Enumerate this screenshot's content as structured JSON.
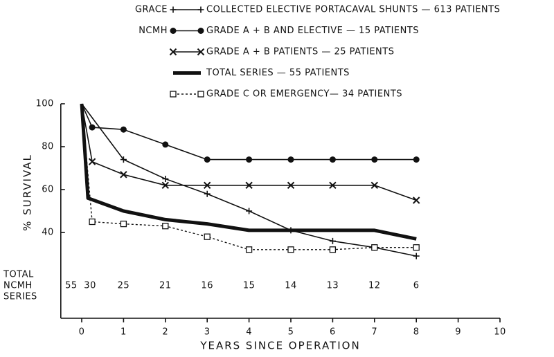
{
  "chart_data": {
    "type": "line",
    "xlabel": "YEARS SINCE OPERATION",
    "ylabel": "% SURVIVAL",
    "xlim": [
      -0.5,
      10
    ],
    "ylim": [
      0,
      100
    ],
    "xticks": [
      0,
      1,
      2,
      3,
      4,
      5,
      6,
      7,
      8,
      9,
      10
    ],
    "yticks": [
      40,
      60,
      80,
      100
    ],
    "series": [
      {
        "group": "GRACE",
        "name": "COLLECTED ELECTIVE PORTACAVAL SHUNTS — 613 PATIENTS",
        "color": "#111",
        "marker": "plus",
        "dash": false,
        "width": 1.6,
        "x": [
          0,
          1,
          2,
          3,
          4,
          5,
          6,
          7,
          8
        ],
        "values": [
          100,
          74,
          65,
          58,
          50,
          41,
          36,
          33,
          29
        ]
      },
      {
        "group": "NCMH",
        "name": "GRADE A + B AND ELECTIVE — 15 PATIENTS",
        "color": "#111",
        "marker": "dot",
        "dash": false,
        "width": 1.6,
        "x": [
          0,
          0.25,
          1,
          2,
          3,
          4,
          5,
          6,
          7,
          8
        ],
        "values": [
          100,
          89,
          88,
          81,
          74,
          74,
          74,
          74,
          74,
          74
        ]
      },
      {
        "name": "GRADE A + B PATIENTS — 25 PATIENTS",
        "color": "#111",
        "marker": "x",
        "dash": false,
        "width": 1.6,
        "x": [
          0,
          0.25,
          1,
          2,
          3,
          4,
          5,
          6,
          7,
          8
        ],
        "values": [
          100,
          73,
          67,
          62,
          62,
          62,
          62,
          62,
          62,
          55
        ]
      },
      {
        "name": "TOTAL SERIES — 55 PATIENTS",
        "color": "#111",
        "marker": "none",
        "dash": false,
        "width": 5,
        "x": [
          0,
          0.15,
          1,
          2,
          3,
          4,
          5,
          6,
          7,
          8
        ],
        "values": [
          100,
          56,
          50,
          46,
          44,
          41,
          41,
          41,
          41,
          37
        ]
      },
      {
        "name": "GRADE C OR EMERGENCY— 34 PATIENTS",
        "color": "#111",
        "marker": "square",
        "dash": true,
        "width": 1.4,
        "x": [
          0,
          0.25,
          1,
          2,
          3,
          4,
          5,
          6,
          7,
          8
        ],
        "values": [
          100,
          45,
          44,
          43,
          38,
          32,
          32,
          32,
          33,
          33
        ]
      }
    ],
    "counts": {
      "label_lines": [
        "TOTAL",
        "NCMH",
        "SERIES"
      ],
      "x": [
        -0.25,
        0.2,
        1,
        2,
        3,
        4,
        5,
        6,
        7,
        8
      ],
      "values": [
        55,
        30,
        25,
        21,
        16,
        15,
        14,
        13,
        12,
        6
      ]
    }
  }
}
